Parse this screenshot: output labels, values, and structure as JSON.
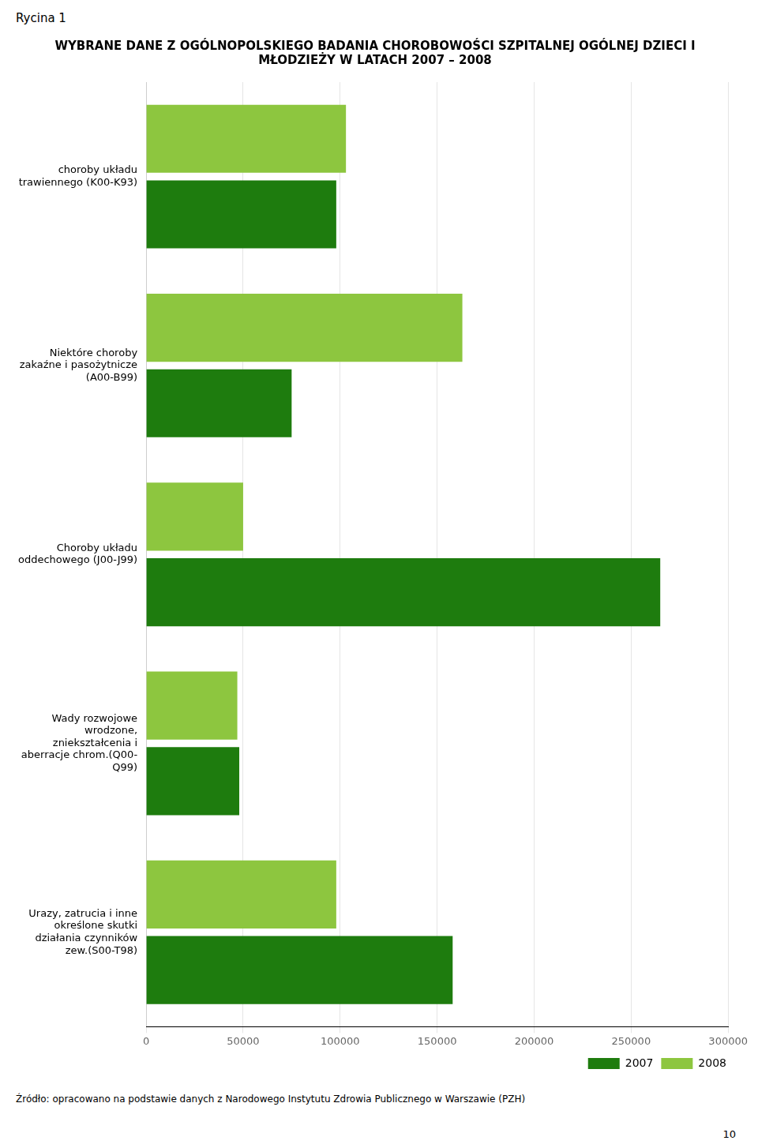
{
  "chart_data": {
    "type": "bar",
    "orientation": "horizontal",
    "title": [
      "WYBRANE DANE Z OGÓLNOPOLSKIEGO BADANIA CHOROBOWOŚCI SZPITALNEJ OGÓLNEJ DZIECI I",
      "MŁODZIEŻY W LATACH 2007 – 2008"
    ],
    "annotations": [
      "Rycina 1",
      "Źródło: opracowano na podstawie danych z Narodowego Instytutu Zdrowia Publicznego w  Warszawie (PZH)",
      "10"
    ],
    "categories": [
      "choroby układu\ntrawiennego (K00-K93)",
      "Niektóre choroby\nzakaźne i pasożytnicze\n(A00-B99)",
      "Choroby układu\noddechowego (J00-J99)",
      "Wady rozwojowe\nwrodzone,\nzniekształcenia i\naberracje chrom.(Q00-\nQ99)",
      "Urazy, zatrucia i inne\nokreślone skutki\ndziałania czynników\nzew.(S00-T98)"
    ],
    "series": [
      {
        "name": "2007",
        "color": "#1e7c0e",
        "values": [
          98000,
          75000,
          265000,
          48000,
          158000
        ]
      },
      {
        "name": "2008",
        "color": "#8dc63f",
        "values": [
          103000,
          163000,
          50000,
          47000,
          98000
        ]
      }
    ],
    "xlim": [
      0,
      300000
    ],
    "xticks": [
      0,
      50000,
      100000,
      150000,
      200000,
      250000,
      300000
    ],
    "grid": true,
    "legend": "lower right"
  }
}
